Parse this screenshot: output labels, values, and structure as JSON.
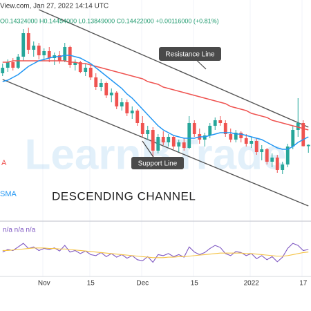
{
  "header": {
    "source": "View.com, Jan 27, 2022 14:14 UTC",
    "ohlc": "O0.14324000 H0.14454000 L0.13849000 C0.14422000 +0.00116000 (+0.81%)"
  },
  "watermark": "LearnBTrade",
  "chart_data": [
    {
      "type": "candlestick",
      "categories": [
        null,
        null,
        null,
        null,
        null,
        null,
        null,
        null,
        "Nov",
        null,
        null,
        null,
        null,
        null,
        null,
        null,
        null,
        "15",
        null,
        null,
        null,
        null,
        null,
        null,
        null,
        null,
        null,
        "Dec",
        null,
        null,
        null,
        null,
        null,
        null,
        null,
        null,
        null,
        "15",
        null,
        null,
        null,
        null,
        null,
        null,
        null,
        null,
        null,
        null,
        "2022",
        null,
        null,
        null,
        null,
        null,
        null,
        null,
        null,
        null,
        "17",
        null
      ],
      "open": [
        0.196,
        0.2,
        0.204,
        0.2,
        0.208,
        0.225,
        0.213,
        0.216,
        0.209,
        0.212,
        0.207,
        0.209,
        0.205,
        0.215,
        0.202,
        0.204,
        0.197,
        0.2,
        0.193,
        0.186,
        0.189,
        0.18,
        0.182,
        0.172,
        0.175,
        0.167,
        0.169,
        0.16,
        0.152,
        0.155,
        0.14,
        0.15,
        0.146,
        0.15,
        0.143,
        0.146,
        0.142,
        0.16,
        0.152,
        0.148,
        0.151,
        0.158,
        0.162,
        0.16,
        0.152,
        0.148,
        0.153,
        0.149,
        0.145,
        0.147,
        0.139,
        0.141,
        0.132,
        0.135,
        0.126,
        0.13,
        0.143,
        0.155,
        0.16,
        0.14324
      ],
      "high": [
        0.203,
        0.206,
        0.207,
        0.21,
        0.228,
        0.229,
        0.219,
        0.218,
        0.214,
        0.215,
        0.211,
        0.212,
        0.218,
        0.216,
        0.206,
        0.205,
        0.203,
        0.202,
        0.196,
        0.192,
        0.19,
        0.185,
        0.183,
        0.178,
        0.177,
        0.172,
        0.17,
        0.165,
        0.158,
        0.157,
        0.152,
        0.154,
        0.152,
        0.151,
        0.148,
        0.149,
        0.165,
        0.162,
        0.156,
        0.153,
        0.16,
        0.164,
        0.165,
        0.162,
        0.156,
        0.155,
        0.154,
        0.152,
        0.15,
        0.149,
        0.144,
        0.142,
        0.138,
        0.137,
        0.132,
        0.145,
        0.158,
        0.178,
        0.162,
        0.14454
      ],
      "low": [
        0.194,
        0.197,
        0.198,
        0.199,
        0.205,
        0.21,
        0.208,
        0.206,
        0.205,
        0.204,
        0.202,
        0.203,
        0.204,
        0.2,
        0.198,
        0.196,
        0.194,
        0.191,
        0.184,
        0.183,
        0.178,
        0.175,
        0.17,
        0.169,
        0.165,
        0.163,
        0.158,
        0.15,
        0.148,
        0.135,
        0.138,
        0.144,
        0.143,
        0.141,
        0.139,
        0.14,
        0.141,
        0.15,
        0.145,
        0.143,
        0.149,
        0.155,
        0.158,
        0.15,
        0.146,
        0.146,
        0.146,
        0.143,
        0.142,
        0.137,
        0.133,
        0.13,
        0.128,
        0.124,
        0.123,
        0.128,
        0.141,
        0.15,
        0.143,
        0.13849
      ],
      "close": [
        0.2,
        0.204,
        0.2,
        0.208,
        0.225,
        0.213,
        0.216,
        0.209,
        0.212,
        0.207,
        0.209,
        0.205,
        0.215,
        0.202,
        0.204,
        0.197,
        0.2,
        0.193,
        0.186,
        0.189,
        0.18,
        0.182,
        0.172,
        0.175,
        0.167,
        0.169,
        0.16,
        0.152,
        0.155,
        0.14,
        0.15,
        0.146,
        0.15,
        0.143,
        0.146,
        0.142,
        0.16,
        0.152,
        0.148,
        0.151,
        0.158,
        0.162,
        0.16,
        0.152,
        0.148,
        0.153,
        0.149,
        0.145,
        0.147,
        0.139,
        0.141,
        0.132,
        0.135,
        0.126,
        0.13,
        0.143,
        0.155,
        0.16,
        0.14324,
        0.14422
      ],
      "up_color": "#26a69a",
      "down_color": "#ef5350",
      "ylim": [
        0.09,
        0.249
      ],
      "series": [
        {
          "name": "A",
          "color": "#ef5350",
          "values": [
            0.204,
            0.204,
            0.205,
            0.205,
            0.205,
            0.205,
            0.205,
            0.205,
            0.205,
            0.205,
            0.205,
            0.205,
            0.205,
            0.204,
            0.204,
            0.203,
            0.203,
            0.202,
            0.201,
            0.2,
            0.199,
            0.198,
            0.197,
            0.196,
            0.195,
            0.194,
            0.193,
            0.192,
            0.19,
            0.189,
            0.188,
            0.186,
            0.185,
            0.184,
            0.183,
            0.182,
            0.181,
            0.18,
            0.179,
            0.178,
            0.177,
            0.176,
            0.175,
            0.174,
            0.172,
            0.171,
            0.17,
            0.169,
            0.167,
            0.166,
            0.165,
            0.164,
            0.162,
            0.161,
            0.16,
            0.159,
            0.158,
            0.157,
            0.156,
            0.155
          ]
        },
        {
          "name": "SMA",
          "color": "#2196f3",
          "values": [
            0.19,
            0.191,
            0.193,
            0.195,
            0.198,
            0.201,
            0.203,
            0.205,
            0.206,
            0.207,
            0.208,
            0.208,
            0.209,
            0.209,
            0.208,
            0.207,
            0.205,
            0.203,
            0.2,
            0.197,
            0.194,
            0.191,
            0.188,
            0.185,
            0.181,
            0.178,
            0.174,
            0.17,
            0.166,
            0.162,
            0.158,
            0.155,
            0.153,
            0.151,
            0.15,
            0.149,
            0.149,
            0.149,
            0.15,
            0.15,
            0.151,
            0.152,
            0.153,
            0.153,
            0.153,
            0.152,
            0.152,
            0.151,
            0.15,
            0.149,
            0.148,
            0.146,
            0.144,
            0.142,
            0.141,
            0.141,
            0.143,
            0.146,
            0.148,
            0.15
          ]
        }
      ],
      "trendlines": [
        {
          "name": "Resistance Line",
          "color": "#555555",
          "x": [
            7,
            59
          ],
          "y": [
            0.242,
            0.157
          ]
        },
        {
          "name": "Support Line",
          "color": "#555555",
          "x": [
            0,
            59
          ],
          "y": [
            0.1915,
            0.1
          ]
        }
      ],
      "annotation": "DESCENDING CHANNEL"
    },
    {
      "type": "line",
      "legend_text": "n/a n/a n/a",
      "ylim": [
        0,
        100
      ],
      "series": [
        {
          "color": "#7e57c2",
          "values": [
            45,
            50,
            48,
            55,
            62,
            52,
            55,
            48,
            52,
            50,
            53,
            47,
            58,
            45,
            48,
            42,
            47,
            40,
            38,
            44,
            36,
            42,
            35,
            40,
            33,
            38,
            30,
            28,
            36,
            25,
            40,
            38,
            42,
            36,
            40,
            35,
            55,
            45,
            40,
            44,
            52,
            58,
            54,
            42,
            38,
            46,
            44,
            38,
            42,
            32,
            38,
            30,
            36,
            26,
            35,
            52,
            62,
            58,
            48,
            50
          ]
        },
        {
          "color": "#f5c242",
          "values": [
            48,
            48,
            49,
            50,
            51,
            52,
            53,
            53,
            53,
            52,
            52,
            51,
            51,
            50,
            49,
            48,
            47,
            46,
            45,
            44,
            43,
            42,
            41,
            40,
            39,
            38,
            37,
            36,
            35,
            34,
            34,
            34,
            35,
            35,
            36,
            36,
            37,
            38,
            39,
            40,
            41,
            42,
            43,
            43,
            43,
            43,
            43,
            42,
            42,
            41,
            40,
            39,
            38,
            37,
            37,
            38,
            40,
            42,
            44,
            45
          ]
        }
      ]
    }
  ]
}
